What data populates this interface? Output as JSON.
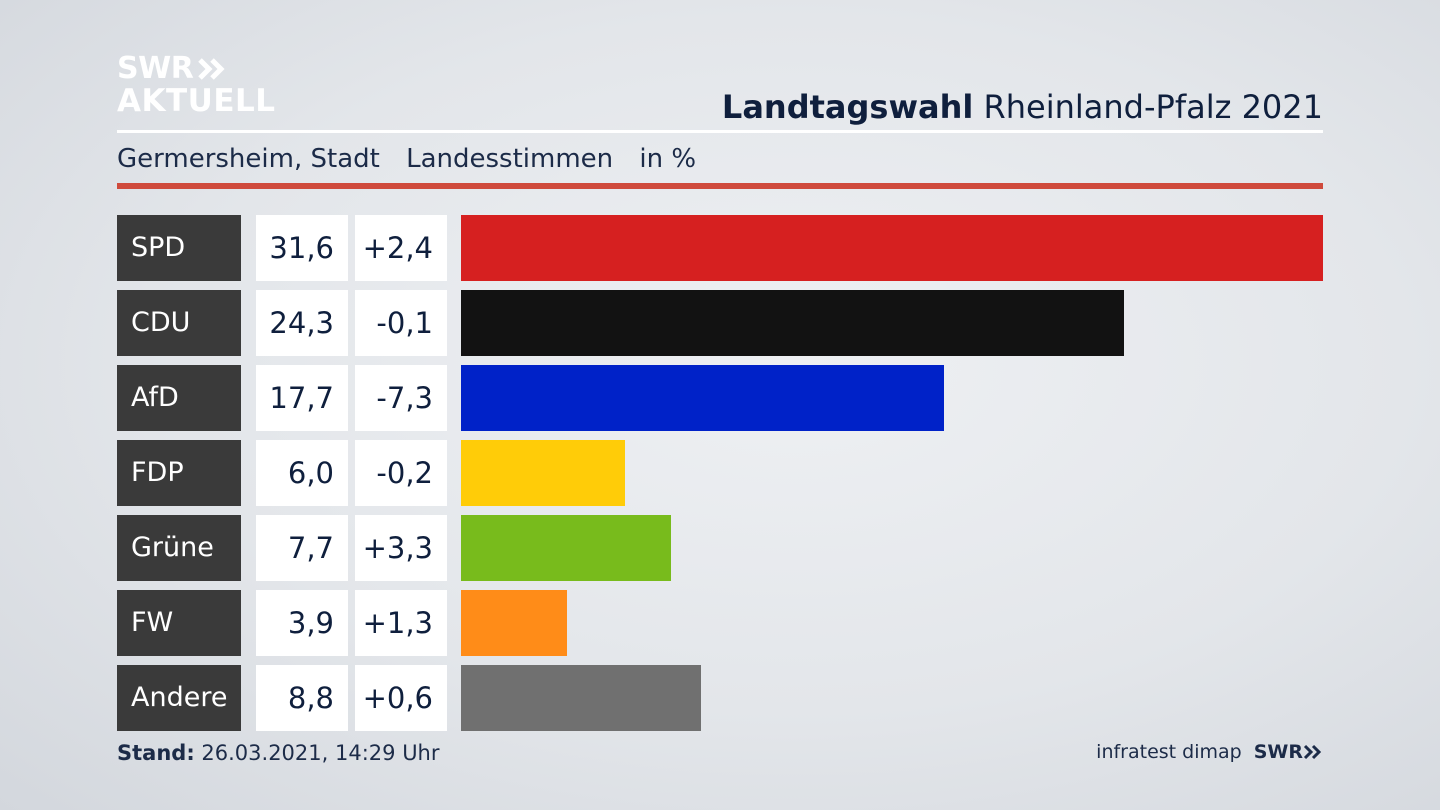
{
  "logo": {
    "line1": "SWR",
    "line2": "AKTUELL"
  },
  "title": {
    "bold": "Landtagswahl",
    "rest": "Rheinland-Pfalz 2021"
  },
  "subtitle": {
    "place": "Germersheim, Stadt",
    "type": "Landesstimmen",
    "unit": "in %"
  },
  "footer": {
    "stand_label": "Stand:",
    "stand_value": "26.03.2021, 14:29 Uhr",
    "source": "infratest dimap",
    "brand": "SWR"
  },
  "chart_data": {
    "type": "bar",
    "orientation": "horizontal",
    "categories": [
      "SPD",
      "CDU",
      "AfD",
      "FDP",
      "Grüne",
      "FW",
      "Andere"
    ],
    "values": [
      31.6,
      24.3,
      17.7,
      6.0,
      7.7,
      3.9,
      8.8
    ],
    "value_labels": [
      "31,6",
      "24,3",
      "17,7",
      "6,0",
      "7,7",
      "3,9",
      "8,8"
    ],
    "diff_labels": [
      "+2,4",
      "-0,1",
      "-7,3",
      "-0,2",
      "+3,3",
      "+1,3",
      "+0,6"
    ],
    "colors": [
      "#d62020",
      "#121212",
      "#0022c8",
      "#ffcc08",
      "#78bb1c",
      "#ff8c18",
      "#707070"
    ],
    "xlim": [
      0,
      31.6
    ]
  }
}
